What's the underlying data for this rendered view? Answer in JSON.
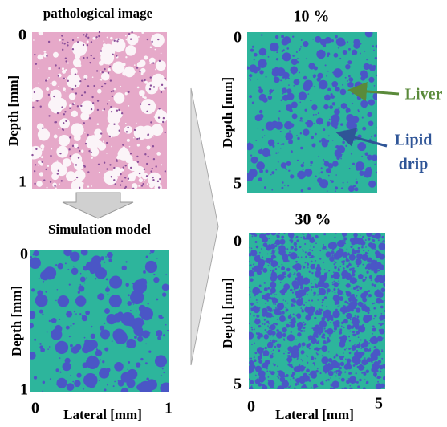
{
  "panels": [
    {
      "title": "pathological image",
      "y_label": "Depth [mm]",
      "y_top": "0",
      "y_bottom": "1"
    },
    {
      "title": "Simulation model",
      "y_label": "Depth [mm]",
      "y_top": "0",
      "y_bottom": "1",
      "x_label": "Lateral [mm]",
      "x_left": "0",
      "x_right": "1"
    },
    {
      "title": "10 %",
      "y_label": "Depth [mm]",
      "y_top": "0",
      "y_bottom": "5"
    },
    {
      "title": "30 %",
      "y_label": "Depth [mm]",
      "y_top": "0",
      "y_bottom": "5",
      "x_label": "Lateral [mm]",
      "x_left": "0",
      "x_right": "5"
    }
  ],
  "annotations": {
    "liver": "Liver",
    "lipid_drip": [
      "Lipid",
      "drip"
    ]
  }
}
